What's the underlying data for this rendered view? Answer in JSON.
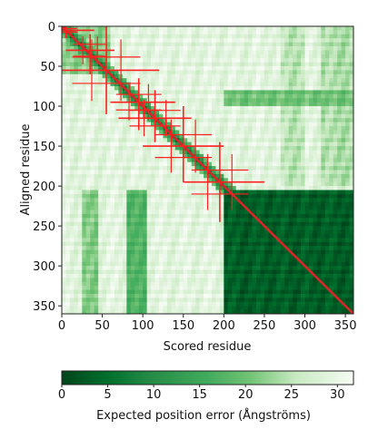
{
  "chart_data": {
    "type": "heatmap",
    "title": "",
    "xlabel": "Scored residue",
    "ylabel": "Aligned residue",
    "n_residues": 360,
    "xlim": [
      0,
      360
    ],
    "ylim": [
      360,
      0
    ],
    "x_ticks": [
      0,
      50,
      100,
      150,
      200,
      250,
      300,
      350
    ],
    "y_ticks": [
      0,
      50,
      100,
      150,
      200,
      250,
      300,
      350
    ],
    "colorbar": {
      "label": "Expected position error (Ångströms)",
      "ticks": [
        0,
        5,
        10,
        15,
        20,
        25,
        30
      ],
      "range": [
        0,
        31.75
      ],
      "color_low": "#00441b",
      "color_mid": "#41ab5d",
      "color_high": "#f7fcf5"
    },
    "regions": [
      {
        "x": [
          0,
          360
        ],
        "y": [
          0,
          360
        ],
        "pae": 29
      },
      {
        "x": [
          0,
          60
        ],
        "y": [
          0,
          60
        ],
        "pae": 22
      },
      {
        "x": [
          270,
          300
        ],
        "y": [
          0,
          200
        ],
        "pae": 25
      },
      {
        "x": [
          320,
          360
        ],
        "y": [
          0,
          200
        ],
        "pae": 24
      },
      {
        "x": [
          200,
          360
        ],
        "y": [
          80,
          100
        ],
        "pae": 20
      },
      {
        "x": [
          25,
          42
        ],
        "y": [
          205,
          360
        ],
        "pae": 21
      },
      {
        "x": [
          80,
          105
        ],
        "y": [
          205,
          360
        ],
        "pae": 17
      },
      {
        "x": [
          200,
          360
        ],
        "y": [
          205,
          360
        ],
        "pae": 3
      }
    ],
    "diagonal": {
      "color": "#d62728",
      "width_residues": 3,
      "near_diag_pae": 6
    },
    "secondary_structure_markers": {
      "color": "#ff2020",
      "crosses": [
        {
          "center": [
            5,
            5
          ],
          "x_span": [
            0,
            40
          ],
          "y_span": [
            0,
            15
          ]
        },
        {
          "center": [
            35,
            30
          ],
          "x_span": [
            5,
            65
          ],
          "y_span": [
            10,
            60
          ]
        },
        {
          "center": [
            55,
            55
          ],
          "x_span": [
            0,
            120
          ],
          "y_span": [
            0,
            110
          ]
        },
        {
          "center": [
            95,
            95
          ],
          "x_span": [
            60,
            140
          ],
          "y_span": [
            65,
            130
          ]
        },
        {
          "center": [
            115,
            115
          ],
          "x_span": [
            70,
            160
          ],
          "y_span": [
            80,
            145
          ]
        },
        {
          "center": [
            150,
            150
          ],
          "x_span": [
            100,
            200
          ],
          "y_span": [
            100,
            195
          ]
        },
        {
          "center": [
            195,
            195
          ],
          "x_span": [
            150,
            250
          ],
          "y_span": [
            145,
            245
          ]
        }
      ]
    },
    "grid": false,
    "legend": "colorbar-bottom"
  }
}
